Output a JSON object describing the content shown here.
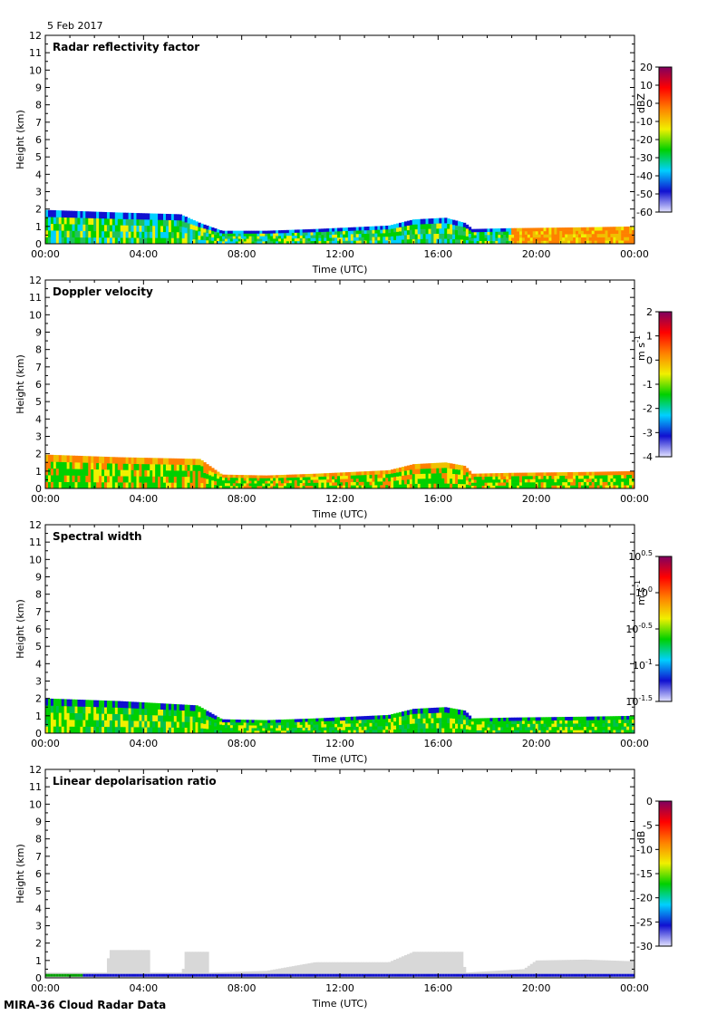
{
  "date_label": "5 Feb 2017",
  "footer": "MIRA-36 Cloud Radar Data",
  "xlabel": "Time (UTC)",
  "ylabel": "Height (km)",
  "x_ticks": [
    "00:00",
    "04:00",
    "08:00",
    "12:00",
    "16:00",
    "20:00",
    "00:00"
  ],
  "y_ticks": [
    "0",
    "1",
    "2",
    "3",
    "4",
    "5",
    "6",
    "7",
    "8",
    "9",
    "10",
    "11",
    "12"
  ],
  "colors": {
    "colormap": [
      "#e2e2ff",
      "#1010d0",
      "#00d0ff",
      "#00d000",
      "#f0f000",
      "#ff8000",
      "#ff0000",
      "#800060"
    ],
    "ldr_background": "#d8d8d8"
  },
  "chart_data": [
    {
      "type": "heatmap",
      "id": "reflectivity",
      "title": "Radar reflectivity factor",
      "xlabel": "Time (UTC)",
      "ylabel": "Height (km)",
      "xlim": [
        0,
        24
      ],
      "ylim": [
        0,
        12
      ],
      "colorbar": {
        "label": "dBZ",
        "range": [
          -60,
          20
        ],
        "ticks": [
          "20",
          "10",
          "0",
          "-10",
          "-20",
          "-30",
          "-40",
          "-50",
          "-60"
        ]
      },
      "cloud_top_km": [
        [
          0,
          1.95
        ],
        [
          3,
          1.8
        ],
        [
          5.5,
          1.7
        ],
        [
          6.3,
          1.2
        ],
        [
          7.2,
          0.75
        ],
        [
          9,
          0.75
        ],
        [
          11,
          0.85
        ],
        [
          14,
          1.05
        ],
        [
          15,
          1.4
        ],
        [
          16.3,
          1.5
        ],
        [
          17.1,
          1.2
        ],
        [
          17.4,
          0.85
        ],
        [
          19,
          0.9
        ],
        [
          22,
          0.95
        ],
        [
          24,
          1.0
        ]
      ]
    },
    {
      "type": "heatmap",
      "id": "doppler",
      "title": "Doppler velocity",
      "xlabel": "Time (UTC)",
      "ylabel": "Height (km)",
      "xlim": [
        0,
        24
      ],
      "ylim": [
        0,
        12
      ],
      "colorbar": {
        "label": "m s-1",
        "range": [
          -4,
          2
        ],
        "ticks": [
          "2",
          "1",
          "0",
          "-1",
          "-2",
          "-3",
          "-4"
        ]
      },
      "cloud_top_km": [
        [
          0,
          1.95
        ],
        [
          3,
          1.8
        ],
        [
          6.3,
          1.7
        ],
        [
          7.2,
          0.8
        ],
        [
          9,
          0.75
        ],
        [
          11,
          0.85
        ],
        [
          14,
          1.05
        ],
        [
          15,
          1.4
        ],
        [
          16.3,
          1.5
        ],
        [
          17.1,
          1.3
        ],
        [
          17.4,
          0.85
        ],
        [
          19,
          0.9
        ],
        [
          22,
          0.95
        ],
        [
          24,
          1.0
        ]
      ]
    },
    {
      "type": "heatmap",
      "id": "spectral",
      "title": "Spectral width",
      "xlabel": "Time (UTC)",
      "ylabel": "Height (km)",
      "xlim": [
        0,
        24
      ],
      "ylim": [
        0,
        12
      ],
      "colorbar": {
        "label": "m s-1",
        "range": [
          -1.5,
          0.5
        ],
        "scale": "log10",
        "ticks": [
          "100.5",
          "100",
          "10-0.5",
          "10-1",
          "10-1.5"
        ]
      },
      "cloud_top_km": [
        [
          0,
          2.0
        ],
        [
          3,
          1.85
        ],
        [
          6.2,
          1.6
        ],
        [
          7.2,
          0.8
        ],
        [
          9,
          0.75
        ],
        [
          11,
          0.85
        ],
        [
          14,
          1.05
        ],
        [
          15,
          1.4
        ],
        [
          16.3,
          1.5
        ],
        [
          17.1,
          1.3
        ],
        [
          17.4,
          0.85
        ],
        [
          19,
          0.9
        ],
        [
          22,
          0.95
        ],
        [
          24,
          1.0
        ]
      ]
    },
    {
      "type": "heatmap",
      "id": "ldr",
      "title": "Linear depolarisation ratio",
      "xlabel": "Time (UTC)",
      "ylabel": "Height (km)",
      "xlim": [
        0,
        24
      ],
      "ylim": [
        0,
        12
      ],
      "colorbar": {
        "label": "dB",
        "range": [
          -30,
          0
        ],
        "ticks": [
          "0",
          "-5",
          "-10",
          "-15",
          "-20",
          "-25",
          "-30"
        ]
      },
      "cloud_top_km": [
        [
          0,
          0.3
        ],
        [
          2.5,
          0.3
        ],
        [
          2.6,
          1.6
        ],
        [
          4.2,
          1.6
        ],
        [
          4.3,
          0.3
        ],
        [
          5.6,
          0.3
        ],
        [
          5.7,
          1.5
        ],
        [
          6.6,
          1.5
        ],
        [
          6.7,
          0.3
        ],
        [
          9,
          0.4
        ],
        [
          11,
          0.9
        ],
        [
          14,
          0.9
        ],
        [
          15,
          1.5
        ],
        [
          17,
          1.5
        ],
        [
          17.1,
          0.3
        ],
        [
          19.5,
          0.5
        ],
        [
          20,
          1.0
        ],
        [
          22,
          1.05
        ],
        [
          24,
          0.95
        ]
      ]
    }
  ]
}
